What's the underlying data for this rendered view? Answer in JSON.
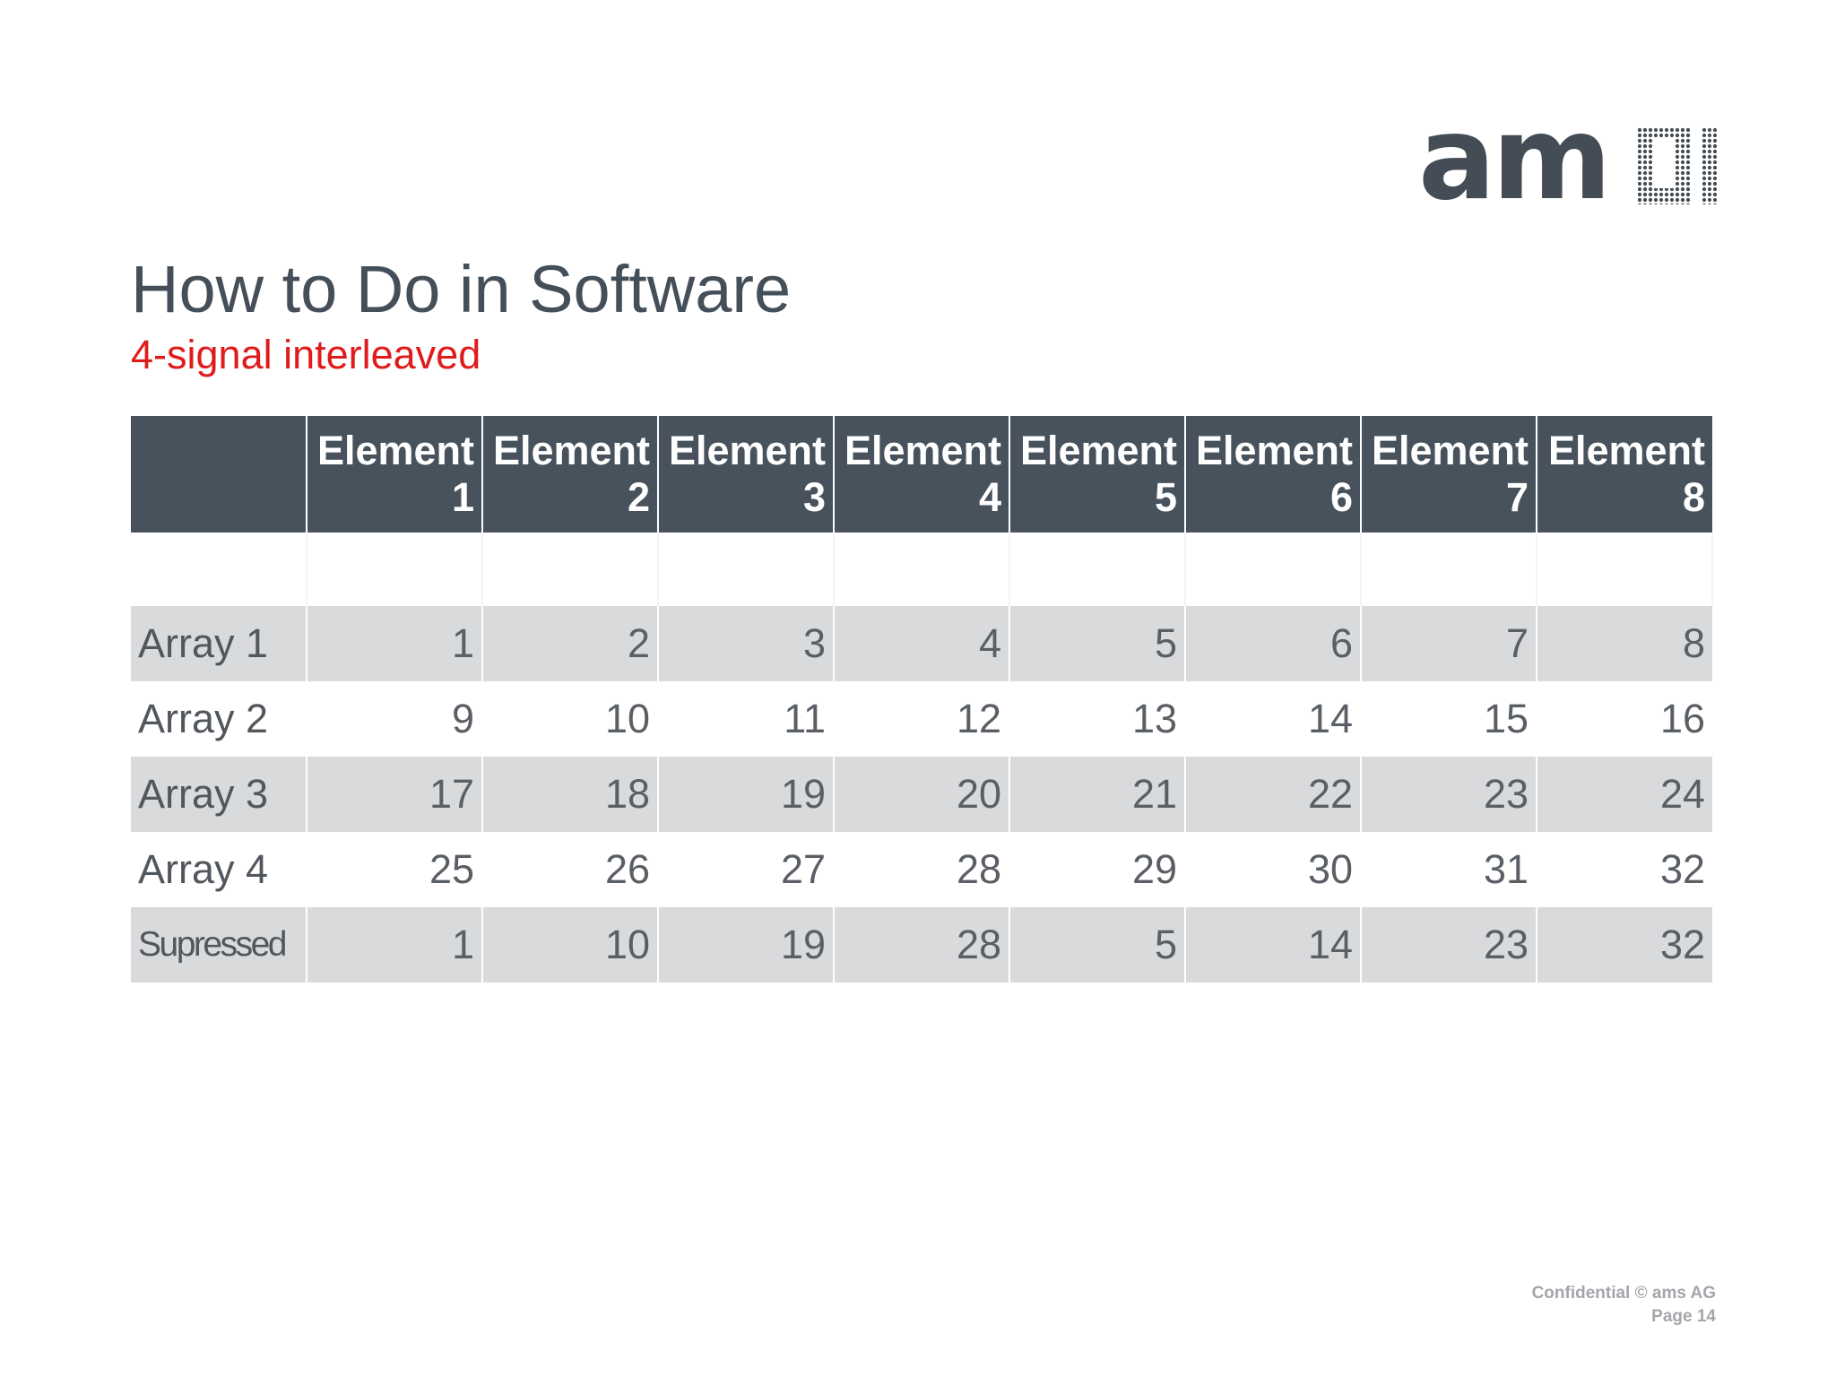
{
  "logo": {
    "text": "am",
    "color": "#444d55"
  },
  "title": "How to Do in Software",
  "subtitle": "4-signal interleaved",
  "table": {
    "header_color": "#47525c",
    "shaded_row_color": "#d9dadc",
    "columns": [
      {
        "line1": "Element",
        "line2": "1"
      },
      {
        "line1": "Element",
        "line2": "2"
      },
      {
        "line1": "Element",
        "line2": "3"
      },
      {
        "line1": "Element",
        "line2": "4"
      },
      {
        "line1": "Element",
        "line2": "5"
      },
      {
        "line1": "Element",
        "line2": "6"
      },
      {
        "line1": "Element",
        "line2": "7"
      },
      {
        "line1": "Element",
        "line2": "8"
      }
    ],
    "rows": [
      {
        "label": "Array 1",
        "values": [
          "1",
          "2",
          "3",
          "4",
          "5",
          "6",
          "7",
          "8"
        ]
      },
      {
        "label": "Array 2",
        "values": [
          "9",
          "10",
          "11",
          "12",
          "13",
          "14",
          "15",
          "16"
        ]
      },
      {
        "label": "Array 3",
        "values": [
          "17",
          "18",
          "19",
          "20",
          "21",
          "22",
          "23",
          "24"
        ]
      },
      {
        "label": "Array 4",
        "values": [
          "25",
          "26",
          "27",
          "28",
          "29",
          "30",
          "31",
          "32"
        ]
      },
      {
        "label": "Supressed",
        "values": [
          "1",
          "10",
          "19",
          "28",
          "5",
          "14",
          "23",
          "32"
        ]
      }
    ]
  },
  "footer": {
    "confidential": "Confidential © ams AG",
    "page": "Page 14"
  }
}
